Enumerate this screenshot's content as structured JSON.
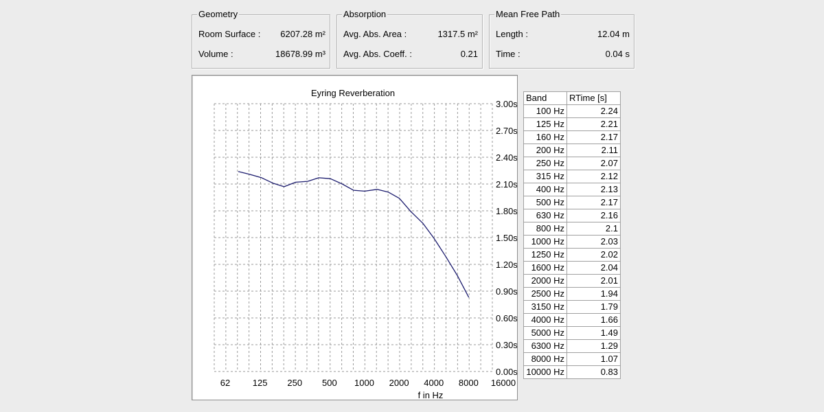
{
  "geometry": {
    "title": "Geometry",
    "room_surface_label": "Room Surface :",
    "room_surface_value": "6207.28 m²",
    "volume_label": "Volume :",
    "volume_value": "18678.99 m³"
  },
  "absorption": {
    "title": "Absorption",
    "area_label": "Avg. Abs. Area :",
    "area_value": "1317.5 m²",
    "coeff_label": "Avg. Abs. Coeff. :",
    "coeff_value": "0.21"
  },
  "mean_free_path": {
    "title": "Mean Free Path",
    "length_label": "Length :",
    "length_value": "12.04 m",
    "time_label": "Time :",
    "time_value": "0.04 s"
  },
  "table": {
    "headers": [
      "Band",
      "RTime [s]"
    ],
    "rows": [
      {
        "band": "100 Hz",
        "rtime": "2.24"
      },
      {
        "band": "125 Hz",
        "rtime": "2.21"
      },
      {
        "band": "160 Hz",
        "rtime": "2.17"
      },
      {
        "band": "200 Hz",
        "rtime": "2.11"
      },
      {
        "band": "250 Hz",
        "rtime": "2.07"
      },
      {
        "band": "315 Hz",
        "rtime": "2.12"
      },
      {
        "band": "400 Hz",
        "rtime": "2.13"
      },
      {
        "band": "500 Hz",
        "rtime": "2.17"
      },
      {
        "band": "630 Hz",
        "rtime": "2.16"
      },
      {
        "band": "800 Hz",
        "rtime": "2.1"
      },
      {
        "band": "1000 Hz",
        "rtime": "2.03"
      },
      {
        "band": "1250 Hz",
        "rtime": "2.02"
      },
      {
        "band": "1600 Hz",
        "rtime": "2.04"
      },
      {
        "band": "2000 Hz",
        "rtime": "2.01"
      },
      {
        "band": "2500 Hz",
        "rtime": "1.94"
      },
      {
        "band": "3150 Hz",
        "rtime": "1.79"
      },
      {
        "band": "4000 Hz",
        "rtime": "1.66"
      },
      {
        "band": "5000 Hz",
        "rtime": "1.49"
      },
      {
        "band": "6300 Hz",
        "rtime": "1.29"
      },
      {
        "band": "8000 Hz",
        "rtime": "1.07"
      },
      {
        "band": "10000 Hz",
        "rtime": "0.83"
      }
    ]
  },
  "chart_data": {
    "type": "line",
    "title": "Eyring Reverberation",
    "xlabel": "f in Hz",
    "ylabel": "",
    "x_scale": "log",
    "x_tick_labels": [
      "62",
      "125",
      "250",
      "500",
      "1000",
      "2000",
      "4000",
      "8000",
      "16000"
    ],
    "y_tick_labels": [
      "0.00s",
      "0.30s",
      "0.60s",
      "0.90s",
      "1.20s",
      "1.50s",
      "1.80s",
      "2.10s",
      "2.40s",
      "2.70s",
      "3.00s"
    ],
    "ylim": [
      0,
      3.0
    ],
    "xlim_octaves": [
      62,
      16000
    ],
    "grid": true,
    "line_color": "#1c1c6e",
    "x": [
      100,
      125,
      160,
      200,
      250,
      315,
      400,
      500,
      630,
      800,
      1000,
      1250,
      1600,
      2000,
      2500,
      3150,
      4000,
      5000,
      6300,
      8000,
      10000
    ],
    "values": [
      2.24,
      2.21,
      2.17,
      2.11,
      2.07,
      2.12,
      2.13,
      2.17,
      2.16,
      2.1,
      2.03,
      2.02,
      2.04,
      2.01,
      1.94,
      1.79,
      1.66,
      1.49,
      1.29,
      1.07,
      0.83
    ]
  }
}
